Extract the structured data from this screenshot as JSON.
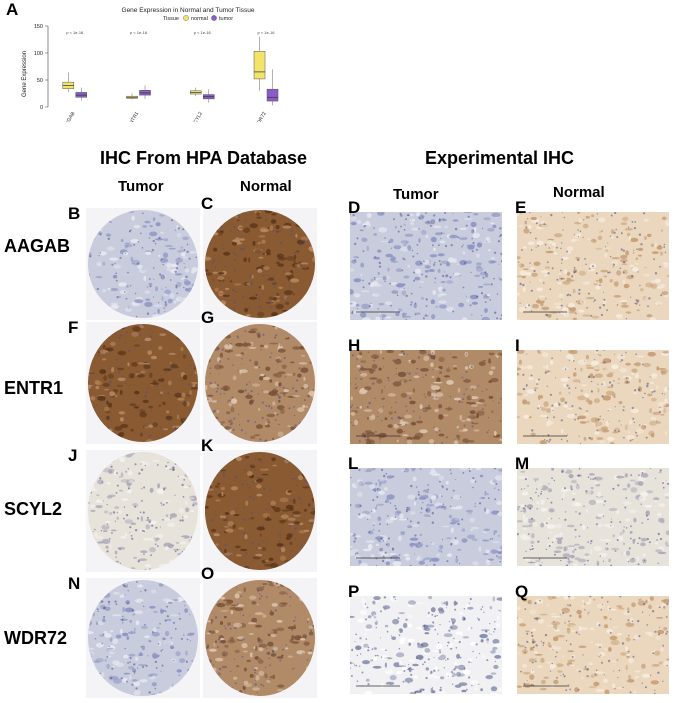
{
  "panel_a_letter": "A",
  "chart_data": {
    "type": "boxplot",
    "title": "Gene Expression in Normal and Tumor Tissue",
    "legend_title": "Tissue",
    "ylabel": "Gene Expression",
    "xlabel": "",
    "ylim": [
      0,
      150
    ],
    "yticks": [
      0,
      50,
      100,
      150
    ],
    "legend_position": "top",
    "categories": [
      "AAGAB",
      "ENTR1",
      "SCYL2",
      "WDR72"
    ],
    "pvalues": [
      "p < 1e-16",
      "p < 1e-16",
      "p < 1e-16",
      "p < 1e-16"
    ],
    "series": [
      {
        "name": "normal",
        "color": "#f2e36b",
        "boxes": [
          {
            "min": 28,
            "q1": 34,
            "median": 40,
            "q3": 46,
            "max": 64
          },
          {
            "min": 14,
            "q1": 16,
            "median": 18,
            "q3": 20,
            "max": 25
          },
          {
            "min": 20,
            "q1": 24,
            "median": 27,
            "q3": 30,
            "max": 36
          },
          {
            "min": 30,
            "q1": 52,
            "median": 65,
            "q3": 103,
            "max": 130
          }
        ]
      },
      {
        "name": "tumor",
        "color": "#8a5cc9",
        "boxes": [
          {
            "min": 12,
            "q1": 18,
            "median": 22,
            "q3": 27,
            "max": 36
          },
          {
            "min": 15,
            "q1": 22,
            "median": 26,
            "q3": 31,
            "max": 40
          },
          {
            "min": 8,
            "q1": 15,
            "median": 19,
            "q3": 23,
            "max": 33
          },
          {
            "min": 3,
            "q1": 11,
            "median": 18,
            "q3": 33,
            "max": 70
          }
        ]
      }
    ]
  },
  "headings": {
    "hpa": "IHC From HPA Database",
    "experimental": "Experimental IHC",
    "tumor_hpa": "Tumor",
    "normal_hpa": "Normal",
    "tumor_exp": "Tumor",
    "normal_exp": "Normal"
  },
  "genes": [
    "AAGAB",
    "ENTR1",
    "SCYL2",
    "WDR72"
  ],
  "panels": [
    {
      "letter": "B",
      "kind": "core",
      "stain": "blue"
    },
    {
      "letter": "C",
      "kind": "core",
      "stain": "darkbrown"
    },
    {
      "letter": "D",
      "kind": "rect",
      "stain": "blue"
    },
    {
      "letter": "E",
      "kind": "rect",
      "stain": "lightbrown"
    },
    {
      "letter": "F",
      "kind": "core",
      "stain": "darkbrown"
    },
    {
      "letter": "G",
      "kind": "core",
      "stain": "midbrown"
    },
    {
      "letter": "H",
      "kind": "rect",
      "stain": "midbrown"
    },
    {
      "letter": "I",
      "kind": "rect",
      "stain": "lightbrown"
    },
    {
      "letter": "J",
      "kind": "core",
      "stain": "pale"
    },
    {
      "letter": "K",
      "kind": "core",
      "stain": "darkbrown"
    },
    {
      "letter": "L",
      "kind": "rect",
      "stain": "blue"
    },
    {
      "letter": "M",
      "kind": "rect",
      "stain": "pale"
    },
    {
      "letter": "N",
      "kind": "core",
      "stain": "blue"
    },
    {
      "letter": "O",
      "kind": "core",
      "stain": "midbrown"
    },
    {
      "letter": "P",
      "kind": "rect",
      "stain": "white"
    },
    {
      "letter": "Q",
      "kind": "rect",
      "stain": "lightbrown"
    }
  ],
  "stain_colors": {
    "blue": [
      "#c9ccdd",
      "#8c94c2",
      "#e8e9f1"
    ],
    "darkbrown": [
      "#8a5a32",
      "#5a3518",
      "#b98b62"
    ],
    "midbrown": [
      "#b18a68",
      "#7a5238",
      "#ddc6ad"
    ],
    "lightbrown": [
      "#ead7bd",
      "#c59c74",
      "#f6ecdf"
    ],
    "pale": [
      "#e7e2da",
      "#a9a8b9",
      "#f5f2ed"
    ],
    "white": [
      "#f1f1f3",
      "#7f86a8",
      "#ffffff"
    ]
  }
}
